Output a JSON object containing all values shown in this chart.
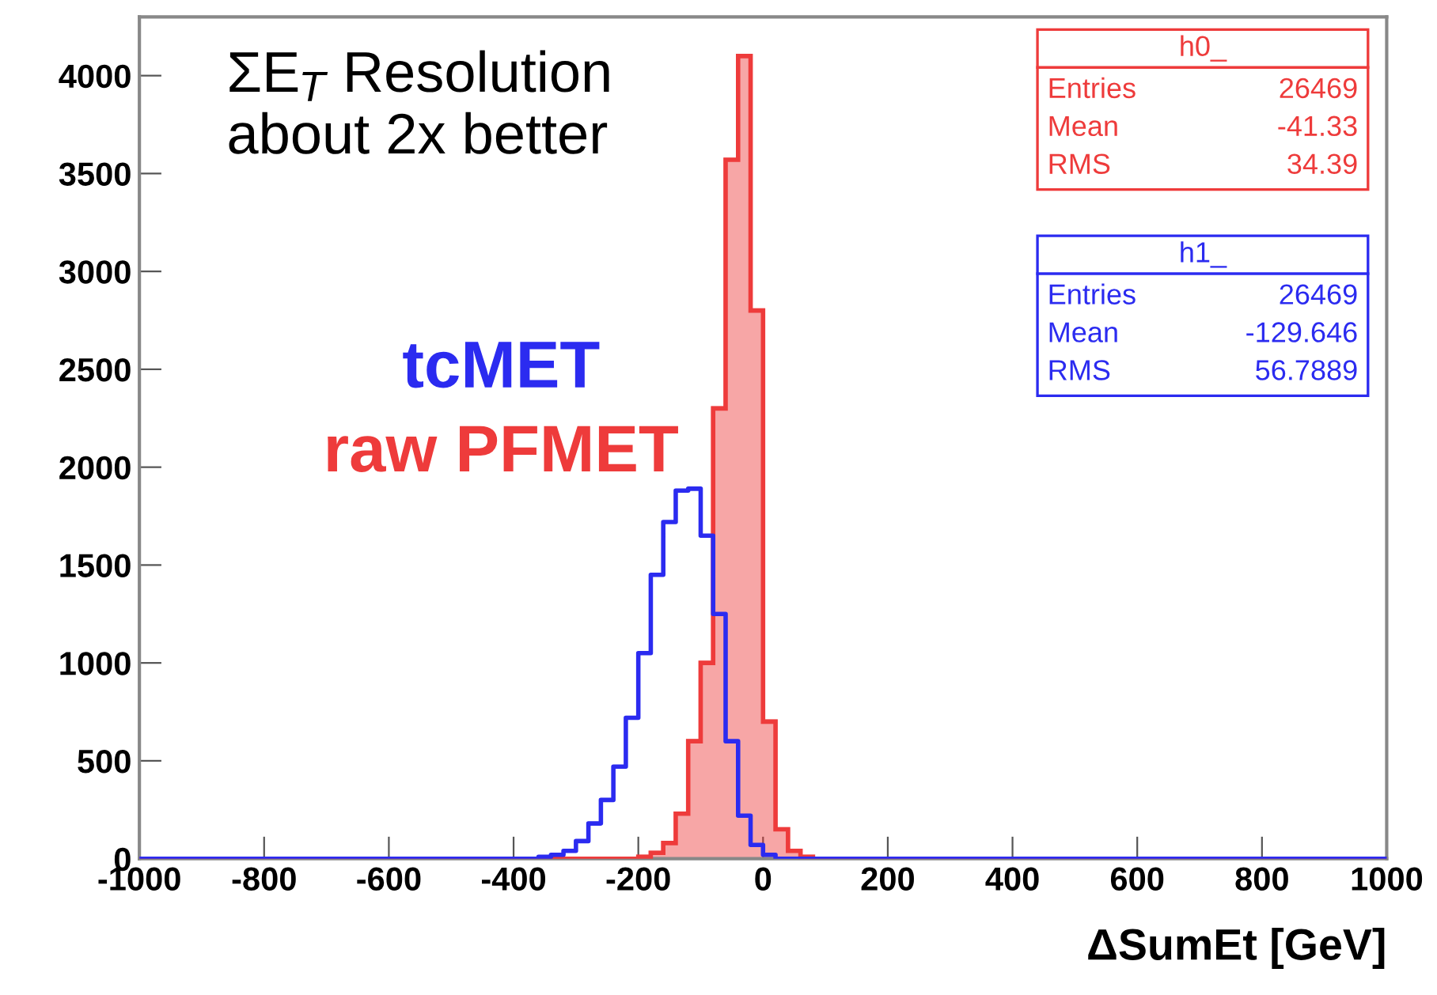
{
  "chart_data": {
    "type": "histogram",
    "xlabel": "ΔSumEt [GeV]",
    "bins": [
      -1000,
      -400,
      -380,
      -360,
      -340,
      -320,
      -300,
      -280,
      -260,
      -240,
      -220,
      -200,
      -180,
      -160,
      -140,
      -120,
      -100,
      -80,
      -60,
      -40,
      -20,
      0,
      20,
      40,
      60,
      80,
      100,
      1000
    ],
    "series": [
      {
        "name": "tcMET",
        "type": "step",
        "color": "#2b2bf0",
        "x": [
          -1000,
          -400,
          -380,
          -360,
          -340,
          -320,
          -300,
          -280,
          -260,
          -240,
          -220,
          -200,
          -180,
          -160,
          -140,
          -120,
          -100,
          -80,
          -60,
          -40,
          -20,
          0,
          20,
          40,
          60,
          80,
          100,
          1000
        ],
        "values": [
          0,
          0,
          0,
          10,
          20,
          40,
          90,
          180,
          300,
          470,
          720,
          1050,
          1450,
          1720,
          1880,
          1890,
          1650,
          1250,
          600,
          220,
          70,
          20,
          0,
          0,
          0,
          0,
          0,
          0
        ]
      },
      {
        "name": "raw PFMET",
        "color": "#ee3b3b",
        "values": [
          0,
          0,
          0,
          0,
          0,
          0,
          0,
          0,
          0,
          0,
          0,
          10,
          30,
          80,
          230,
          600,
          1000,
          2300,
          3570,
          4100,
          2800,
          700,
          150,
          40,
          10,
          0,
          0
        ]
      }
    ],
    "xlim": [
      -1000,
      1000
    ],
    "xticks": [
      -1000,
      -800,
      -600,
      -400,
      -200,
      0,
      200,
      400,
      600,
      800,
      1000
    ],
    "ylim": [
      0,
      4300
    ],
    "yticks": [
      0,
      500,
      1000,
      1500,
      2000,
      2500,
      3000,
      3500,
      4000
    ],
    "legend": false,
    "annotations": [
      "ΣE$_{T}$ Resolution\nabout 2x better",
      "h0_\nEntries 26469\nMean -41.33\nRMS 34.39",
      "h1_\nEntries 26469\nMean -129.646\nRMS 56.7889"
    ]
  }
}
